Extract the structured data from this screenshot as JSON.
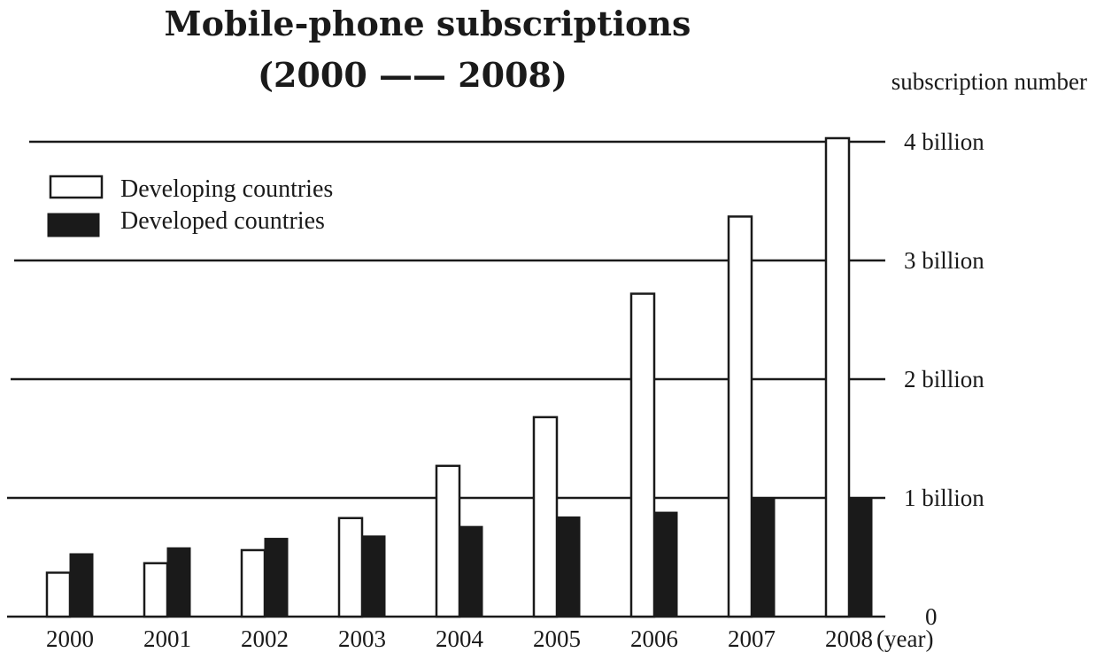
{
  "chart_data": {
    "type": "bar",
    "title_line1": "Mobile-phone subscriptions",
    "title_line2": "(2000 —— 2008)",
    "ylabel": "subscription number",
    "xlabel": "(year)",
    "categories": [
      "2000",
      "2001",
      "2002",
      "2003",
      "2004",
      "2005",
      "2006",
      "2007",
      "2008"
    ],
    "series": [
      {
        "name": "Developing countries",
        "values": [
          0.37,
          0.45,
          0.56,
          0.83,
          1.27,
          1.68,
          2.72,
          3.37,
          4.03
        ]
      },
      {
        "name": "Developed countries",
        "values": [
          0.53,
          0.58,
          0.66,
          0.68,
          0.76,
          0.84,
          0.88,
          1.0,
          1.0
        ]
      }
    ],
    "ylim": [
      0,
      4
    ],
    "yticks": [
      {
        "value": 0,
        "label": "0"
      },
      {
        "value": 1,
        "label": "1 billion"
      },
      {
        "value": 2,
        "label": "2 billion"
      },
      {
        "value": 3,
        "label": "3 billion"
      },
      {
        "value": 4,
        "label": "4 billion"
      }
    ],
    "grid": true,
    "legend_position": "top-left",
    "colors": {
      "developing": "#ffffff",
      "developed": "#1a1a1a",
      "ink": "#1a1a1a"
    }
  }
}
